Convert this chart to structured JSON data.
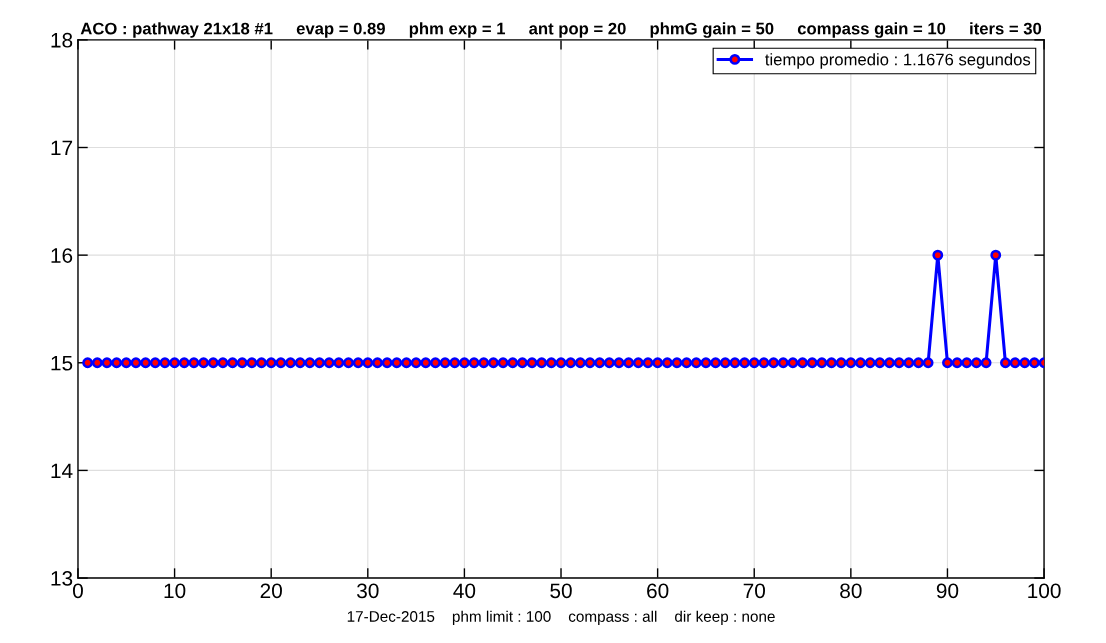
{
  "chart_data": {
    "type": "line",
    "title": "ACO : pathway 21x18 #1     evap = 0.89     phm exp = 1     ant pop = 20     phmG gain = 50     compass gain = 10     iters = 30",
    "xlabel": "17-Dec-2015    phm limit : 100    compass : all    dir keep : none",
    "x": [
      1,
      2,
      3,
      4,
      5,
      6,
      7,
      8,
      9,
      10,
      11,
      12,
      13,
      14,
      15,
      16,
      17,
      18,
      19,
      20,
      21,
      22,
      23,
      24,
      25,
      26,
      27,
      28,
      29,
      30,
      31,
      32,
      33,
      34,
      35,
      36,
      37,
      38,
      39,
      40,
      41,
      42,
      43,
      44,
      45,
      46,
      47,
      48,
      49,
      50,
      51,
      52,
      53,
      54,
      55,
      56,
      57,
      58,
      59,
      60,
      61,
      62,
      63,
      64,
      65,
      66,
      67,
      68,
      69,
      70,
      71,
      72,
      73,
      74,
      75,
      76,
      77,
      78,
      79,
      80,
      81,
      82,
      83,
      84,
      85,
      86,
      87,
      88,
      89,
      90,
      91,
      92,
      93,
      94,
      95,
      96,
      97,
      98,
      99,
      100
    ],
    "series": [
      {
        "name": "tiempo promedio : 1.1676 segundos",
        "color": "#0000ff",
        "values": [
          15,
          15,
          15,
          15,
          15,
          15,
          15,
          15,
          15,
          15,
          15,
          15,
          15,
          15,
          15,
          15,
          15,
          15,
          15,
          15,
          15,
          15,
          15,
          15,
          15,
          15,
          15,
          15,
          15,
          15,
          15,
          15,
          15,
          15,
          15,
          15,
          15,
          15,
          15,
          15,
          15,
          15,
          15,
          15,
          15,
          15,
          15,
          15,
          15,
          15,
          15,
          15,
          15,
          15,
          15,
          15,
          15,
          15,
          15,
          15,
          15,
          15,
          15,
          15,
          15,
          15,
          15,
          15,
          15,
          15,
          15,
          15,
          15,
          15,
          15,
          15,
          15,
          15,
          15,
          15,
          15,
          15,
          15,
          15,
          15,
          15,
          15,
          15,
          16,
          15,
          15,
          15,
          15,
          15,
          16,
          15,
          15,
          15,
          15,
          15
        ]
      }
    ],
    "xlim": [
      0,
      100
    ],
    "xticks": [
      0,
      10,
      20,
      30,
      40,
      50,
      60,
      70,
      80,
      90,
      100
    ],
    "ylim": [
      13,
      18
    ],
    "yticks": [
      13,
      14,
      15,
      16,
      17,
      18
    ],
    "grid": true,
    "legend": "top right",
    "marker": "circle",
    "line_style": "solid"
  }
}
